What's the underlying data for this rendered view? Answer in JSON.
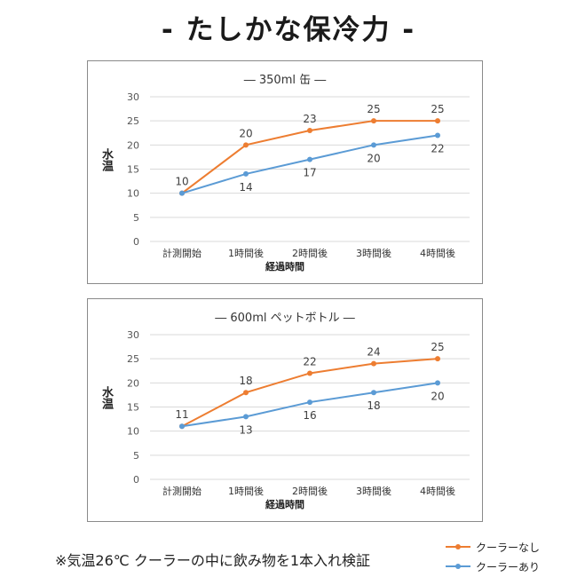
{
  "header": {
    "title": "- たしかな保冷力 -"
  },
  "colors": {
    "no_cooler": "#ED7D31",
    "cooler": "#5B9BD5",
    "grid": "#d9d9d9",
    "frame": "#8a8a8a"
  },
  "footnote": "※気温26℃ クーラーの中に飲み物を1本入れ検証",
  "legend": [
    {
      "label": "クーラーなし",
      "color": "#ED7D31"
    },
    {
      "label": "クーラーあり",
      "color": "#5B9BD5"
    }
  ],
  "chart_data": [
    {
      "type": "line",
      "title": "― 350ml 缶 ―",
      "xlabel": "経過時間",
      "ylabel": "水温",
      "categories": [
        "計測開始",
        "1時間後",
        "2時間後",
        "3時間後",
        "4時間後"
      ],
      "ylim": [
        0,
        30
      ],
      "yticks": [
        0,
        5,
        10,
        15,
        20,
        25,
        30
      ],
      "grid": true,
      "series": [
        {
          "name": "クーラーなし",
          "color": "#ED7D31",
          "values": [
            10,
            20,
            23,
            25,
            25
          ],
          "label_pos": "above"
        },
        {
          "name": "クーラーあり",
          "color": "#5B9BD5",
          "values": [
            10,
            14,
            17,
            20,
            22
          ],
          "label_pos": "below"
        }
      ],
      "shared_first_label": "10"
    },
    {
      "type": "line",
      "title": "― 600ml ペットボトル ―",
      "xlabel": "経過時間",
      "ylabel": "水温",
      "categories": [
        "計測開始",
        "1時間後",
        "2時間後",
        "3時間後",
        "4時間後"
      ],
      "ylim": [
        0,
        30
      ],
      "yticks": [
        0,
        5,
        10,
        15,
        20,
        25,
        30
      ],
      "grid": true,
      "series": [
        {
          "name": "クーラーなし",
          "color": "#ED7D31",
          "values": [
            11,
            18,
            22,
            24,
            25
          ],
          "label_pos": "above"
        },
        {
          "name": "クーラーあり",
          "color": "#5B9BD5",
          "values": [
            11,
            13,
            16,
            18,
            20
          ],
          "label_pos": "below"
        }
      ],
      "shared_first_label": "11"
    }
  ]
}
